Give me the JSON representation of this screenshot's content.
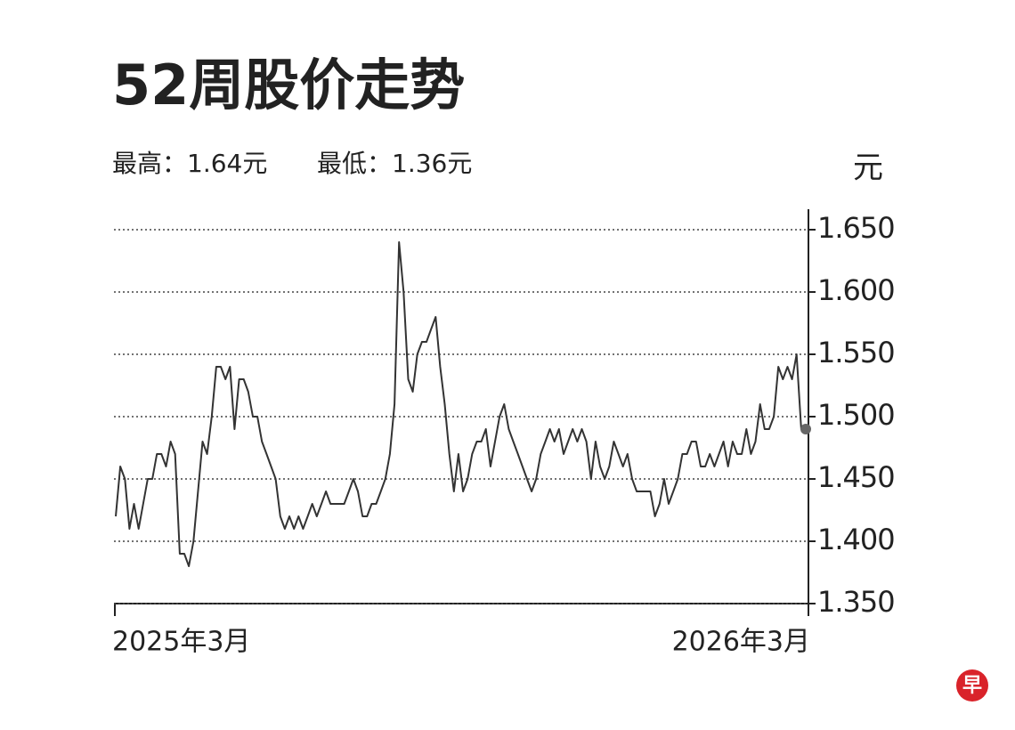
{
  "chart_data": {
    "type": "line",
    "title": "52周股价走势",
    "subtitle_high": "最高：1.64元",
    "subtitle_low": "最低：1.36元",
    "y_unit": "元",
    "color": "#333333",
    "grid": true,
    "categories": [
      "2025年3月",
      null,
      null,
      null,
      null,
      null,
      null,
      null,
      null,
      null,
      null,
      null,
      null,
      null,
      null,
      null,
      null,
      null,
      null,
      null,
      null,
      null,
      null,
      null,
      null,
      null,
      null,
      null,
      null,
      null,
      null,
      null,
      null,
      null,
      null,
      null,
      null,
      null,
      null,
      null,
      null,
      null,
      null,
      null,
      null,
      null,
      null,
      null,
      null,
      null,
      null,
      null,
      null,
      null,
      null,
      null,
      null,
      null,
      null,
      null,
      null,
      null,
      null,
      null,
      null,
      null,
      null,
      null,
      null,
      null,
      null,
      null,
      null,
      null,
      null,
      null,
      null,
      null,
      null,
      null,
      null,
      null,
      null,
      null,
      null,
      null,
      null,
      null,
      null,
      null,
      null,
      null,
      null,
      null,
      null,
      null,
      null,
      null,
      null,
      null,
      null,
      null,
      null,
      null,
      null,
      null,
      null,
      null,
      null,
      null,
      null,
      null,
      null,
      null,
      null,
      null,
      null,
      null,
      null,
      null,
      null,
      null,
      null,
      null,
      null,
      null,
      null,
      null,
      null,
      null,
      null,
      null,
      null,
      null,
      null,
      null,
      null,
      null,
      null,
      null,
      null,
      null,
      null,
      null,
      null,
      null,
      null,
      null,
      null,
      null,
      null,
      "2026年3月"
    ],
    "values": [
      1.42,
      1.46,
      1.45,
      1.41,
      1.43,
      1.41,
      1.43,
      1.45,
      1.45,
      1.47,
      1.47,
      1.46,
      1.48,
      1.47,
      1.39,
      1.39,
      1.38,
      1.4,
      1.44,
      1.48,
      1.47,
      1.5,
      1.54,
      1.54,
      1.53,
      1.54,
      1.49,
      1.53,
      1.53,
      1.52,
      1.5,
      1.5,
      1.48,
      1.47,
      1.46,
      1.45,
      1.42,
      1.41,
      1.42,
      1.41,
      1.42,
      1.41,
      1.42,
      1.43,
      1.42,
      1.43,
      1.44,
      1.43,
      1.43,
      1.43,
      1.43,
      1.44,
      1.45,
      1.44,
      1.42,
      1.42,
      1.43,
      1.43,
      1.44,
      1.45,
      1.47,
      1.51,
      1.64,
      1.6,
      1.53,
      1.52,
      1.55,
      1.56,
      1.56,
      1.57,
      1.58,
      1.54,
      1.51,
      1.47,
      1.44,
      1.47,
      1.44,
      1.45,
      1.47,
      1.48,
      1.48,
      1.49,
      1.46,
      1.48,
      1.5,
      1.51,
      1.49,
      1.48,
      1.47,
      1.46,
      1.45,
      1.44,
      1.45,
      1.47,
      1.48,
      1.49,
      1.48,
      1.49,
      1.47,
      1.48,
      1.49,
      1.48,
      1.49,
      1.48,
      1.45,
      1.48,
      1.46,
      1.45,
      1.46,
      1.48,
      1.47,
      1.46,
      1.47,
      1.45,
      1.44,
      1.44,
      1.44,
      1.44,
      1.42,
      1.43,
      1.45,
      1.43,
      1.44,
      1.45,
      1.47,
      1.47,
      1.48,
      1.48,
      1.46,
      1.46,
      1.47,
      1.46,
      1.47,
      1.48,
      1.46,
      1.48,
      1.47,
      1.47,
      1.49,
      1.47,
      1.48,
      1.51,
      1.49,
      1.49,
      1.5,
      1.54,
      1.53,
      1.54,
      1.53,
      1.55,
      1.49,
      1.49
    ],
    "ylim": [
      1.35,
      1.665
    ],
    "yticks": [
      {
        "value": 1.35,
        "label": "1.350"
      },
      {
        "value": 1.4,
        "label": "1.400"
      },
      {
        "value": 1.45,
        "label": "1.450"
      },
      {
        "value": 1.5,
        "label": "1.500"
      },
      {
        "value": 1.55,
        "label": "1.550"
      },
      {
        "value": 1.6,
        "label": "1.600"
      },
      {
        "value": 1.65,
        "label": "1.650"
      }
    ]
  },
  "logo": "早"
}
